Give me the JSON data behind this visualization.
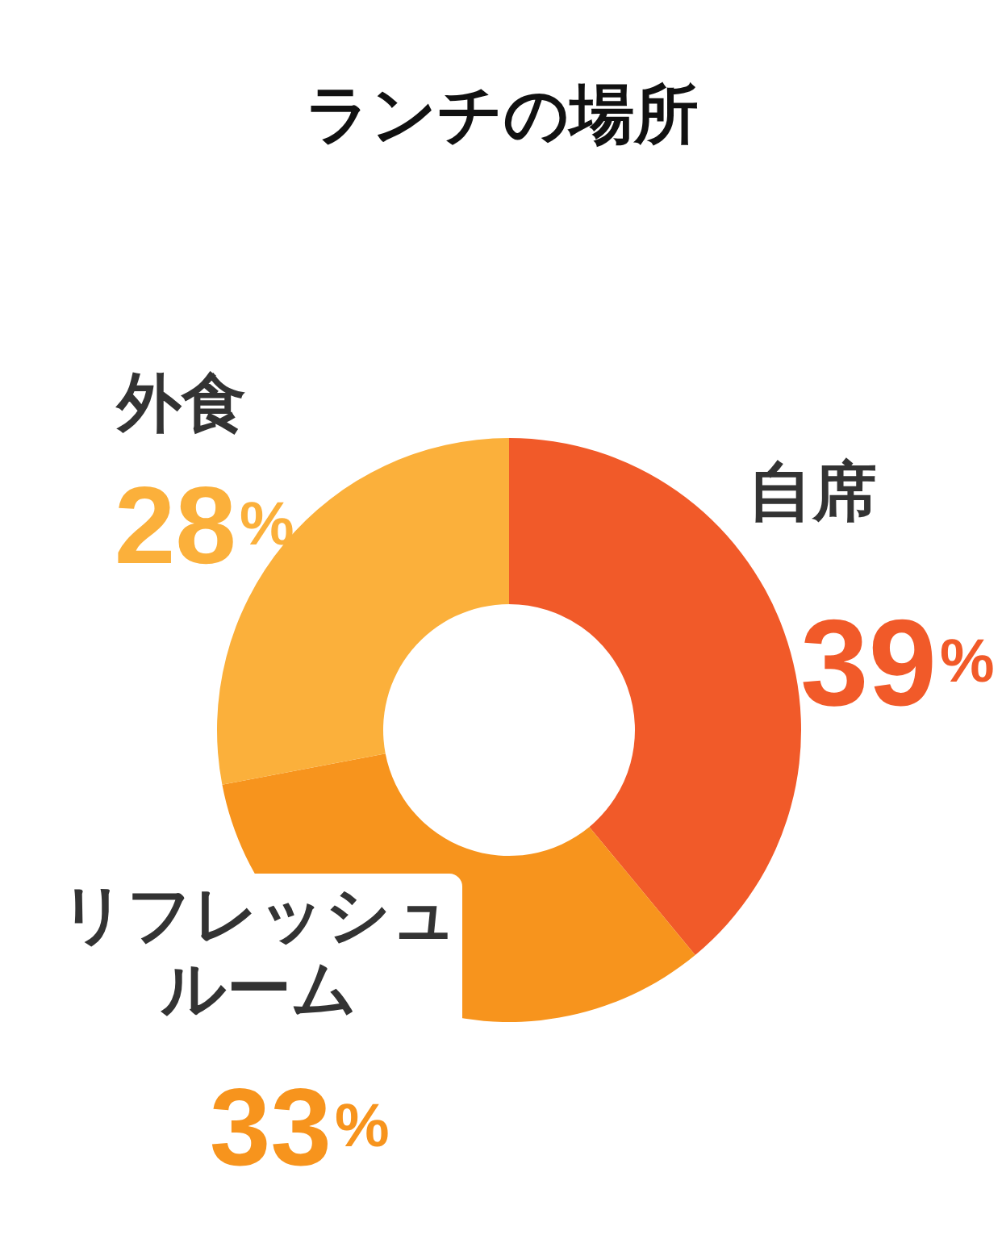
{
  "chart_data": {
    "type": "donut",
    "title": "ランチの場所",
    "categories": [
      "自席",
      "リフレッシュルーム",
      "外食"
    ],
    "values": [
      39,
      33,
      28
    ],
    "colors": [
      "#f15a29",
      "#f7941d",
      "#fbb03b"
    ],
    "value_labels": [
      "39%",
      "33%",
      "28%"
    ]
  }
}
